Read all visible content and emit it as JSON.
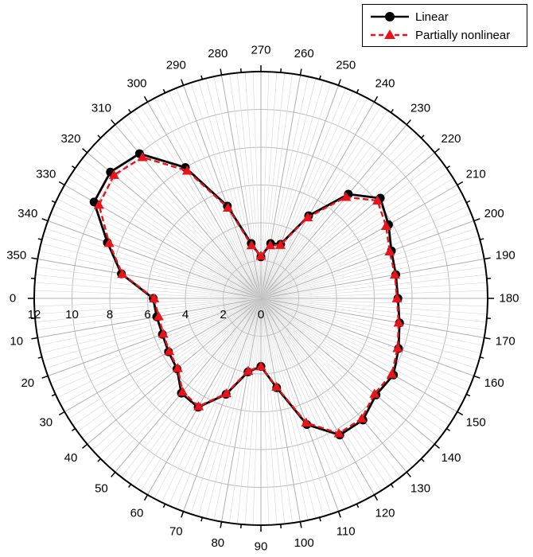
{
  "chart_data": {
    "type": "polar-line",
    "angle_unit": "degrees",
    "angle_direction": "counterclockwise",
    "angle_zero": "left",
    "angle_ticks": [
      0,
      10,
      20,
      30,
      40,
      50,
      60,
      70,
      80,
      90,
      100,
      110,
      120,
      130,
      140,
      150,
      160,
      170,
      180,
      190,
      200,
      210,
      220,
      230,
      240,
      250,
      260,
      270,
      280,
      290,
      300,
      310,
      320,
      330,
      340,
      350
    ],
    "radial_ticks": [
      0,
      2,
      4,
      6,
      8,
      10,
      12
    ],
    "rlim": [
      0,
      12
    ],
    "grid": true,
    "legend_position": "top-right",
    "series": [
      {
        "name": "Linear",
        "color": "#000000",
        "marker": "circle",
        "line": "solid",
        "theta": [
          0,
          10,
          20,
          30,
          40,
          50,
          60,
          70,
          80,
          90,
          100,
          110,
          120,
          130,
          140,
          150,
          160,
          170,
          180,
          190,
          200,
          210,
          220,
          230,
          240,
          250,
          260,
          270,
          280,
          290,
          300,
          310,
          320,
          330,
          340,
          350
        ],
        "r": [
          5.7,
          5.6,
          5.55,
          5.65,
          5.8,
          6.55,
          6.65,
          5.4,
          3.95,
          3.6,
          4.8,
          7.1,
          8.35,
          8.4,
          7.95,
          8.1,
          7.75,
          7.45,
          7.25,
          7.25,
          7.35,
          7.8,
          8.25,
          7.2,
          5.05,
          3.05,
          2.95,
          2.2,
          2.95,
          5.2,
          8.0,
          10.0,
          10.4,
          10.2,
          8.65,
          7.5
        ]
      },
      {
        "name": "Partially nonlinear",
        "color": "#e8141a",
        "marker": "triangle",
        "line": "dashed",
        "theta": [
          0,
          10,
          20,
          30,
          40,
          50,
          60,
          70,
          80,
          90,
          100,
          110,
          120,
          130,
          140,
          150,
          160,
          170,
          180,
          190,
          200,
          210,
          220,
          230,
          240,
          250,
          260,
          270,
          280,
          290,
          300,
          310,
          320,
          330,
          340,
          350
        ],
        "r": [
          5.65,
          5.5,
          5.5,
          5.6,
          5.75,
          6.45,
          6.6,
          5.35,
          3.9,
          3.6,
          4.75,
          7.0,
          8.25,
          8.3,
          7.85,
          8.0,
          7.7,
          7.4,
          7.2,
          7.2,
          7.25,
          7.65,
          8.05,
          7.0,
          4.95,
          3.0,
          2.85,
          2.25,
          2.85,
          5.1,
          7.8,
          9.75,
          10.15,
          9.9,
          8.55,
          7.45
        ]
      }
    ]
  }
}
